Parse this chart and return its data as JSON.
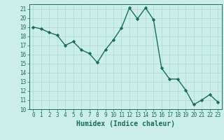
{
  "x": [
    0,
    1,
    2,
    3,
    4,
    5,
    6,
    7,
    8,
    9,
    10,
    11,
    12,
    13,
    14,
    15,
    16,
    17,
    18,
    19,
    20,
    21,
    22,
    23
  ],
  "y": [
    19,
    18.8,
    18.4,
    18.1,
    17.0,
    17.4,
    16.5,
    16.1,
    15.1,
    16.5,
    17.6,
    18.9,
    21.1,
    19.9,
    21.1,
    19.8,
    14.5,
    13.3,
    13.3,
    12.1,
    10.5,
    11.0,
    11.6,
    10.8
  ],
  "line_color": "#1a6b5a",
  "marker": "D",
  "marker_size": 2.2,
  "bg_color": "#cceee8",
  "grid_color": "#aad8d0",
  "xlabel": "Humidex (Indice chaleur)",
  "ylabel": "",
  "xlim": [
    -0.5,
    23.5
  ],
  "ylim": [
    10,
    21.5
  ],
  "yticks": [
    10,
    11,
    12,
    13,
    14,
    15,
    16,
    17,
    18,
    19,
    20,
    21
  ],
  "xticks": [
    0,
    1,
    2,
    3,
    4,
    5,
    6,
    7,
    8,
    9,
    10,
    11,
    12,
    13,
    14,
    15,
    16,
    17,
    18,
    19,
    20,
    21,
    22,
    23
  ],
  "tick_fontsize": 5.5,
  "label_fontsize": 7,
  "line_width": 1.0
}
